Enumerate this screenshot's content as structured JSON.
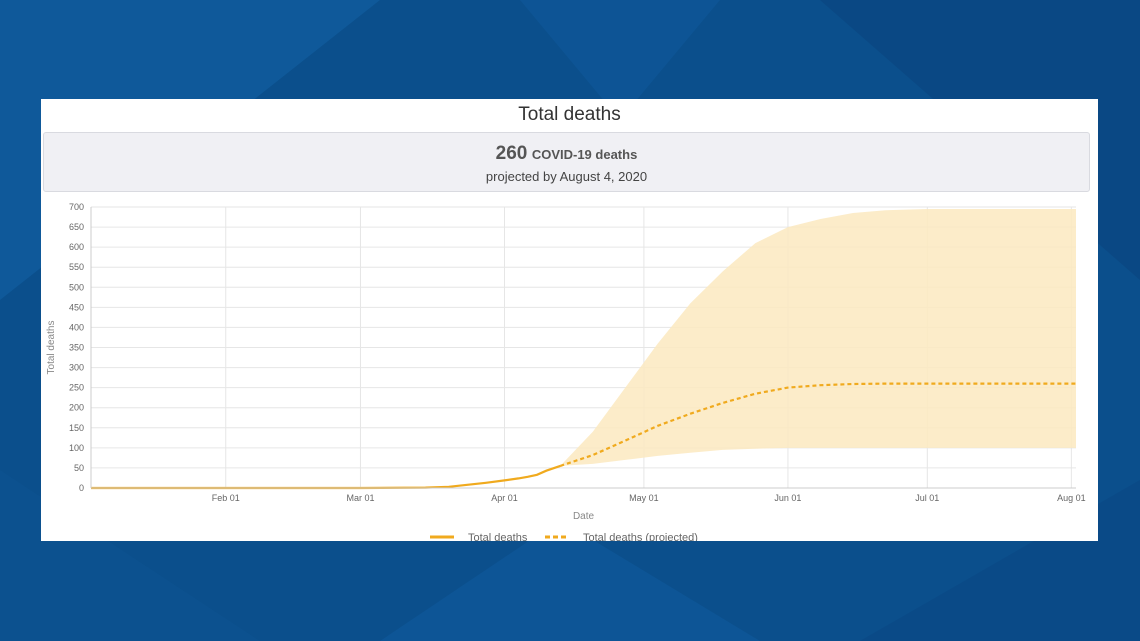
{
  "page": {
    "title": "Total deaths",
    "summary": {
      "value": "260",
      "label": "COVID-19 deaths",
      "subtitle": "projected by August 4, 2020"
    }
  },
  "colors": {
    "line": "#f0aa1e",
    "band": "#fce9c0",
    "background": "#0b4f8c"
  },
  "chart_data": {
    "type": "line",
    "title": "Total deaths",
    "xlabel": "Date",
    "ylabel": "Total deaths",
    "ylim": [
      0,
      700
    ],
    "yticks": [
      0,
      50,
      100,
      150,
      200,
      250,
      300,
      350,
      400,
      450,
      500,
      550,
      600,
      650,
      700
    ],
    "xlim": [
      "2020-01-03",
      "2020-08-02"
    ],
    "xticks": [
      {
        "date": "2020-02-01",
        "label": "Feb 01"
      },
      {
        "date": "2020-03-01",
        "label": "Mar 01"
      },
      {
        "date": "2020-04-01",
        "label": "Apr 01"
      },
      {
        "date": "2020-05-01",
        "label": "May 01"
      },
      {
        "date": "2020-06-01",
        "label": "Jun 01"
      },
      {
        "date": "2020-07-01",
        "label": "Jul 01"
      },
      {
        "date": "2020-08-01",
        "label": "Aug 01"
      }
    ],
    "grid": true,
    "legend_position": "bottom",
    "series": [
      {
        "name": "Total deaths",
        "style": "solid",
        "points": [
          [
            "2020-01-03",
            0
          ],
          [
            "2020-02-01",
            0
          ],
          [
            "2020-03-01",
            0
          ],
          [
            "2020-03-15",
            1
          ],
          [
            "2020-03-20",
            3
          ],
          [
            "2020-03-24",
            8
          ],
          [
            "2020-03-28",
            13
          ],
          [
            "2020-04-01",
            19
          ],
          [
            "2020-04-04",
            24
          ],
          [
            "2020-04-06",
            28
          ],
          [
            "2020-04-08",
            33
          ],
          [
            "2020-04-10",
            43
          ],
          [
            "2020-04-13",
            55
          ]
        ]
      },
      {
        "name": "Total deaths (projected)",
        "style": "dashed",
        "points": [
          [
            "2020-04-13",
            55
          ],
          [
            "2020-04-20",
            82
          ],
          [
            "2020-04-27",
            118
          ],
          [
            "2020-05-04",
            155
          ],
          [
            "2020-05-11",
            185
          ],
          [
            "2020-05-18",
            212
          ],
          [
            "2020-05-25",
            235
          ],
          [
            "2020-06-01",
            250
          ],
          [
            "2020-06-08",
            256
          ],
          [
            "2020-06-15",
            259
          ],
          [
            "2020-06-22",
            260
          ],
          [
            "2020-07-01",
            260
          ],
          [
            "2020-08-02",
            260
          ]
        ]
      }
    ],
    "uncertainty_band": {
      "upper": [
        [
          "2020-04-13",
          55
        ],
        [
          "2020-04-20",
          140
        ],
        [
          "2020-04-27",
          250
        ],
        [
          "2020-05-04",
          360
        ],
        [
          "2020-05-11",
          460
        ],
        [
          "2020-05-18",
          540
        ],
        [
          "2020-05-25",
          610
        ],
        [
          "2020-06-01",
          650
        ],
        [
          "2020-06-08",
          670
        ],
        [
          "2020-06-15",
          685
        ],
        [
          "2020-06-22",
          692
        ],
        [
          "2020-07-01",
          695
        ],
        [
          "2020-08-02",
          695
        ]
      ],
      "lower": [
        [
          "2020-04-13",
          55
        ],
        [
          "2020-04-20",
          60
        ],
        [
          "2020-04-27",
          70
        ],
        [
          "2020-05-04",
          80
        ],
        [
          "2020-05-11",
          88
        ],
        [
          "2020-05-18",
          95
        ],
        [
          "2020-05-25",
          98
        ],
        [
          "2020-06-01",
          100
        ],
        [
          "2020-06-15",
          100
        ],
        [
          "2020-07-01",
          100
        ],
        [
          "2020-08-02",
          100
        ]
      ]
    }
  }
}
